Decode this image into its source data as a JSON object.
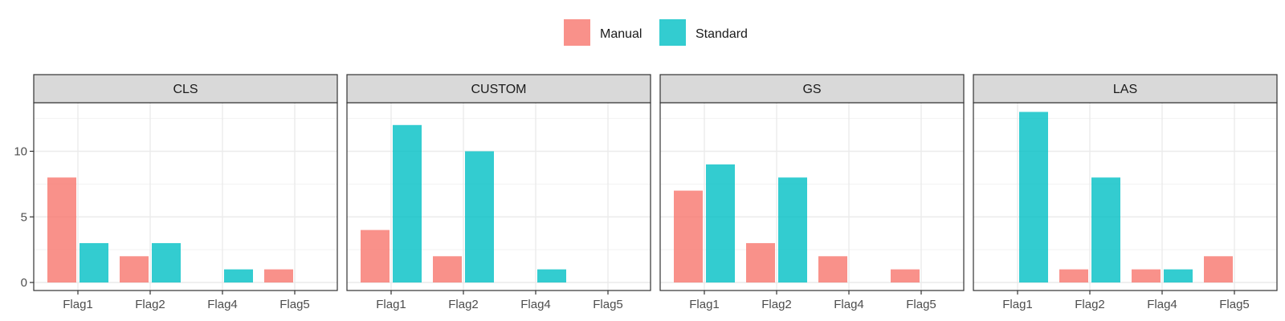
{
  "chart_data": {
    "type": "bar",
    "categories": [
      "Flag1",
      "Flag2",
      "Flag4",
      "Flag5"
    ],
    "legend": {
      "position": "top",
      "entries": [
        "Manual",
        "Standard"
      ]
    },
    "colors": {
      "Manual": "#f8766d",
      "Standard": "#00bfc4"
    },
    "y_ticks": [
      0,
      5,
      10
    ],
    "ylim": [
      0,
      13
    ],
    "grid": true,
    "panels": [
      {
        "title": "CLS",
        "series": [
          {
            "name": "Manual",
            "values": [
              8,
              2,
              0,
              1
            ]
          },
          {
            "name": "Standard",
            "values": [
              3,
              3,
              1,
              0
            ]
          }
        ]
      },
      {
        "title": "CUSTOM",
        "series": [
          {
            "name": "Manual",
            "values": [
              4,
              2,
              0,
              0
            ]
          },
          {
            "name": "Standard",
            "values": [
              12,
              10,
              1,
              0
            ]
          }
        ]
      },
      {
        "title": "GS",
        "series": [
          {
            "name": "Manual",
            "values": [
              7,
              3,
              2,
              1
            ]
          },
          {
            "name": "Standard",
            "values": [
              9,
              8,
              0,
              0
            ]
          }
        ]
      },
      {
        "title": "LAS",
        "series": [
          {
            "name": "Manual",
            "values": [
              0,
              1,
              1,
              2
            ]
          },
          {
            "name": "Standard",
            "values": [
              13,
              8,
              1,
              0
            ]
          }
        ]
      }
    ]
  }
}
